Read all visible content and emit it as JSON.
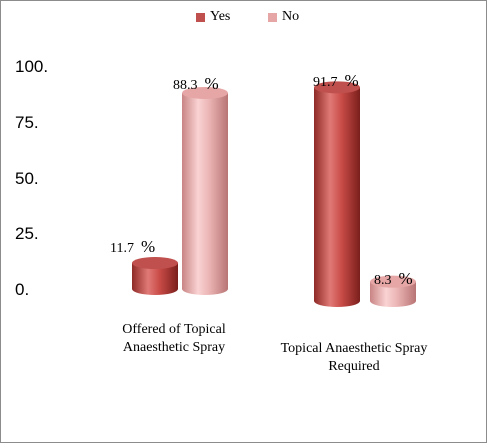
{
  "chart_data": {
    "type": "bar",
    "categories": [
      "Offered of Topical Anaesthetic Spray",
      "Topical Anaesthetic Spray Required"
    ],
    "category_lines": [
      [
        "Offered of Topical",
        "Anaesthetic Spray"
      ],
      [
        "Topical Anaesthetic Spray",
        "Required"
      ]
    ],
    "series": [
      {
        "name": "Yes",
        "values": [
          11.7,
          91.7
        ],
        "color": "#c0504d"
      },
      {
        "name": "No",
        "values": [
          88.3,
          8.3
        ],
        "color": "#e6a6a6"
      }
    ],
    "data_labels": [
      [
        "11.7",
        "91.7"
      ],
      [
        "88.3",
        "8.3"
      ]
    ],
    "value_suffix": "%",
    "yticks": [
      "0.",
      "25.",
      "50.",
      "75.",
      "100."
    ],
    "ylim": [
      0,
      100
    ],
    "legend_position": "top",
    "style": "3d-cylinder",
    "grid": false,
    "title": "",
    "xlabel": "",
    "ylabel": ""
  }
}
